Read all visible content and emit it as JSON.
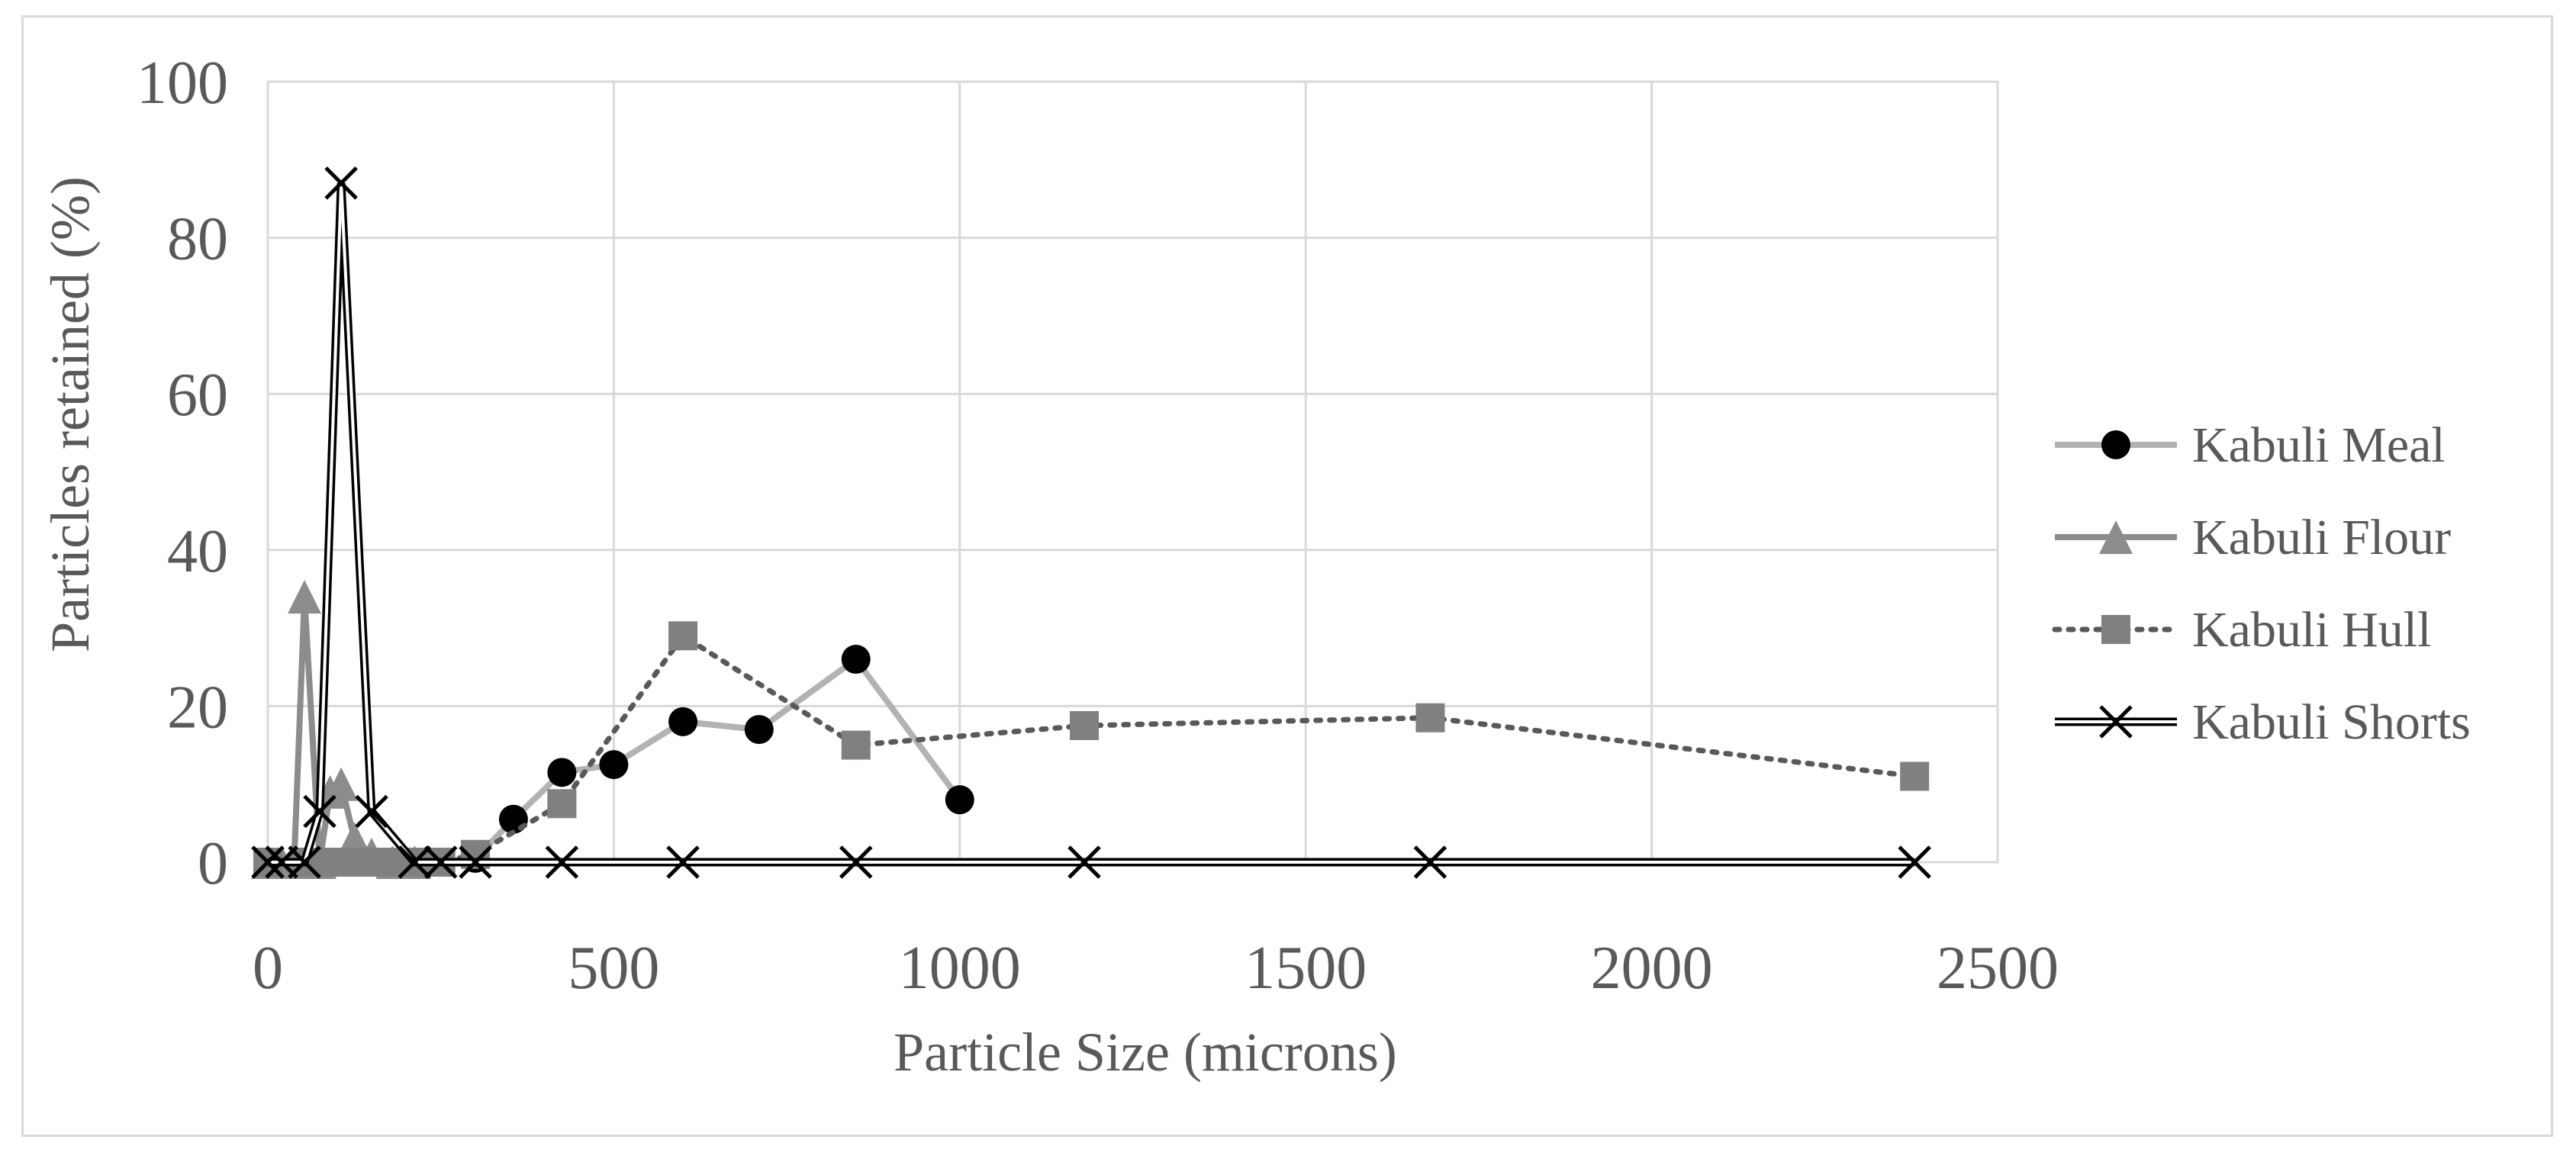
{
  "chart_data": {
    "type": "line",
    "title": "",
    "xlabel": "Particle Size (microns)",
    "ylabel": "Particles retained (%)",
    "xlim": [
      0,
      2500
    ],
    "ylim": [
      0,
      100
    ],
    "xticks": [
      0,
      500,
      1000,
      1500,
      2000,
      2500
    ],
    "yticks": [
      0,
      20,
      40,
      60,
      80,
      100
    ],
    "grid": true,
    "legend_position": "right",
    "series": [
      {
        "name": "Kabuli Meal",
        "marker": "circle",
        "line_style": "solid",
        "line_color": "#b3b3b3",
        "marker_color": "#000000",
        "x": [
          0,
          45,
          75,
          106,
          125,
          150,
          212,
          250,
          300,
          355,
          425,
          500,
          600,
          710,
          850,
          1000
        ],
        "y": [
          0,
          0,
          0,
          0,
          0,
          0,
          0,
          0,
          0.5,
          5.5,
          11.5,
          12.5,
          18,
          17,
          26,
          8
        ]
      },
      {
        "name": "Kabuli Flour",
        "marker": "triangle",
        "line_style": "solid",
        "line_color": "#8c8c8c",
        "marker_color": "#8c8c8c",
        "x": [
          0,
          20,
          38,
          53,
          75,
          90,
          106,
          125,
          150,
          180,
          212
        ],
        "y": [
          0,
          0,
          0,
          34,
          0,
          9,
          10,
          3,
          1,
          0,
          0
        ]
      },
      {
        "name": "Kabuli Hull",
        "marker": "square",
        "line_style": "dotted",
        "line_color": "#595959",
        "marker_color": "#808080",
        "x": [
          0,
          53,
          75,
          106,
          125,
          150,
          180,
          212,
          250,
          300,
          425,
          600,
          850,
          1180,
          1680,
          2380
        ],
        "y": [
          0,
          0,
          0,
          0,
          0,
          0,
          0,
          0,
          0,
          1,
          7.5,
          29,
          15,
          17.5,
          18.5,
          11
        ]
      },
      {
        "name": "Kabuli Shorts",
        "marker": "x",
        "line_style": "double",
        "line_color": "#000000",
        "marker_color": "#000000",
        "x": [
          0,
          20,
          53,
          75,
          106,
          150,
          212,
          250,
          300,
          425,
          600,
          850,
          1180,
          1680,
          2380
        ],
        "y": [
          0,
          0,
          0,
          6.5,
          87,
          6.5,
          0,
          0,
          0,
          0,
          0,
          0,
          0,
          0,
          0
        ]
      }
    ]
  }
}
